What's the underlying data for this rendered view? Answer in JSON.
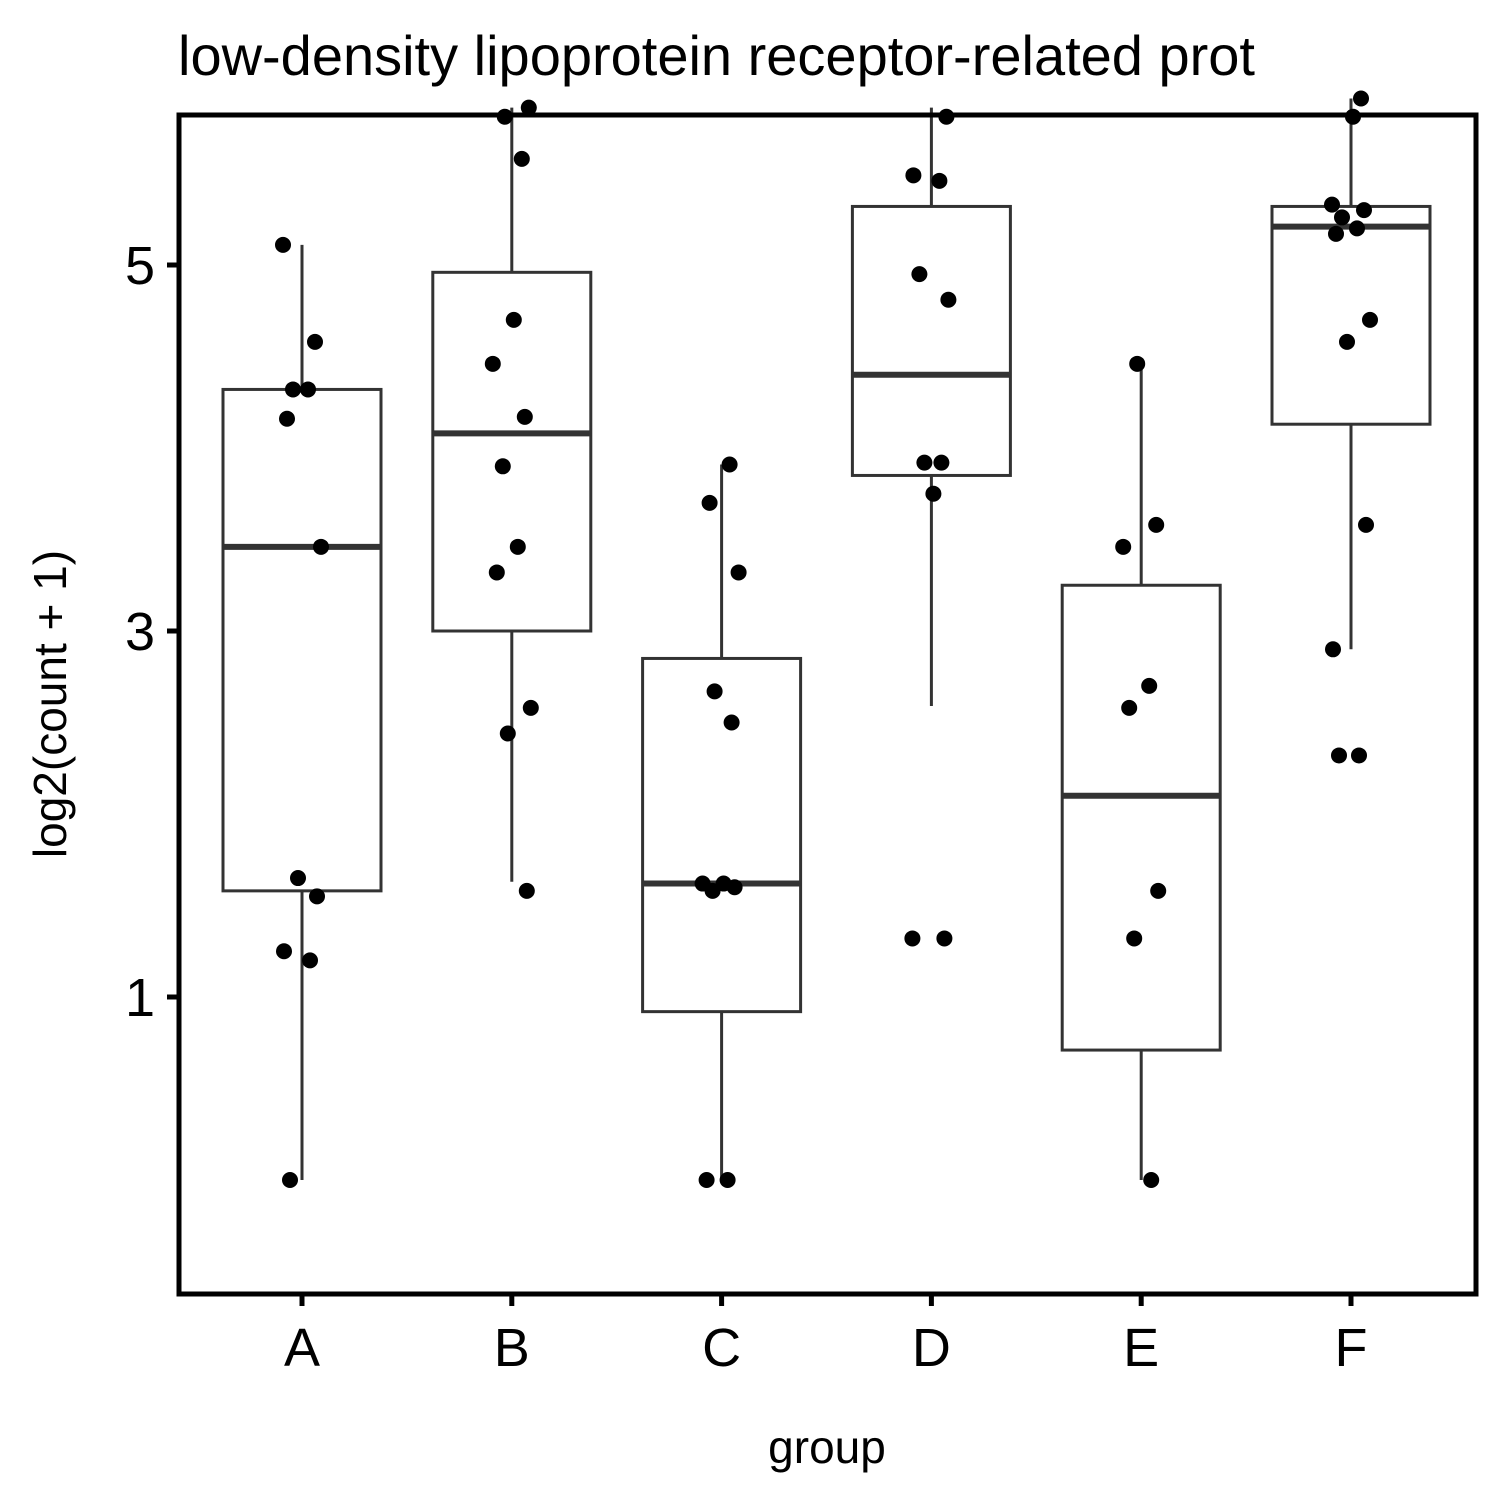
{
  "chart_data": {
    "type": "boxplot",
    "title": "low-density lipoprotein receptor-related prot",
    "xlabel": "group",
    "ylabel": "log2(count + 1)",
    "ylim": [
      -0.23,
      6.0
    ],
    "yscale": "log2(count + 1)",
    "y_ticks": [
      {
        "value": 1,
        "label": "1"
      },
      {
        "value": 3,
        "label": "3"
      },
      {
        "value": 5,
        "label": "5"
      }
    ],
    "categories": [
      "A",
      "B",
      "C",
      "D",
      "E",
      "F"
    ],
    "boxes": [
      {
        "group": "A",
        "whisker_low": 0.0,
        "q1": 1.58,
        "median": 3.46,
        "q3": 4.32,
        "whisker_high": 5.11
      },
      {
        "group": "B",
        "whisker_low": 1.63,
        "q1": 3.0,
        "median": 4.08,
        "q3": 4.96,
        "whisker_high": 5.86
      },
      {
        "group": "C",
        "whisker_low": 0.0,
        "q1": 0.92,
        "median": 1.62,
        "q3": 2.85,
        "whisker_high": 3.91
      },
      {
        "group": "D",
        "whisker_low": 2.59,
        "q1": 3.85,
        "median": 4.4,
        "q3": 5.32,
        "whisker_high": 5.86
      },
      {
        "group": "E",
        "whisker_low": 0.0,
        "q1": 0.71,
        "median": 2.1,
        "q3": 3.25,
        "whisker_high": 4.46
      },
      {
        "group": "F",
        "whisker_low": 2.9,
        "q1": 4.13,
        "median": 5.21,
        "q3": 5.32,
        "whisker_high": 5.91
      }
    ],
    "points": [
      {
        "group": "A",
        "values": [
          0.0,
          1.2,
          1.25,
          1.55,
          1.65,
          3.46,
          4.16,
          4.32,
          4.32,
          4.58,
          5.11
        ]
      },
      {
        "group": "B",
        "values": [
          1.58,
          2.44,
          2.58,
          3.32,
          3.46,
          3.9,
          4.17,
          4.46,
          4.7,
          5.58,
          5.81,
          5.86
        ]
      },
      {
        "group": "C",
        "values": [
          0.0,
          0.0,
          1.58,
          1.6,
          1.62,
          1.62,
          2.5,
          2.67,
          3.32,
          3.7,
          3.91
        ]
      },
      {
        "group": "D",
        "values": [
          1.32,
          1.32,
          3.75,
          3.92,
          3.92,
          4.81,
          4.95,
          5.46,
          5.49,
          5.81
        ]
      },
      {
        "group": "E",
        "values": [
          0.0,
          1.32,
          1.58,
          2.58,
          2.7,
          3.46,
          3.58,
          4.46
        ]
      },
      {
        "group": "F",
        "values": [
          2.32,
          2.32,
          2.9,
          3.58,
          4.58,
          4.7,
          5.17,
          5.2,
          5.26,
          5.3,
          5.33,
          5.81,
          5.91
        ]
      }
    ],
    "grid": false,
    "legend": "none",
    "colors": {
      "box_stroke": "#333333",
      "point": "#000000",
      "frame": "#000000"
    }
  }
}
